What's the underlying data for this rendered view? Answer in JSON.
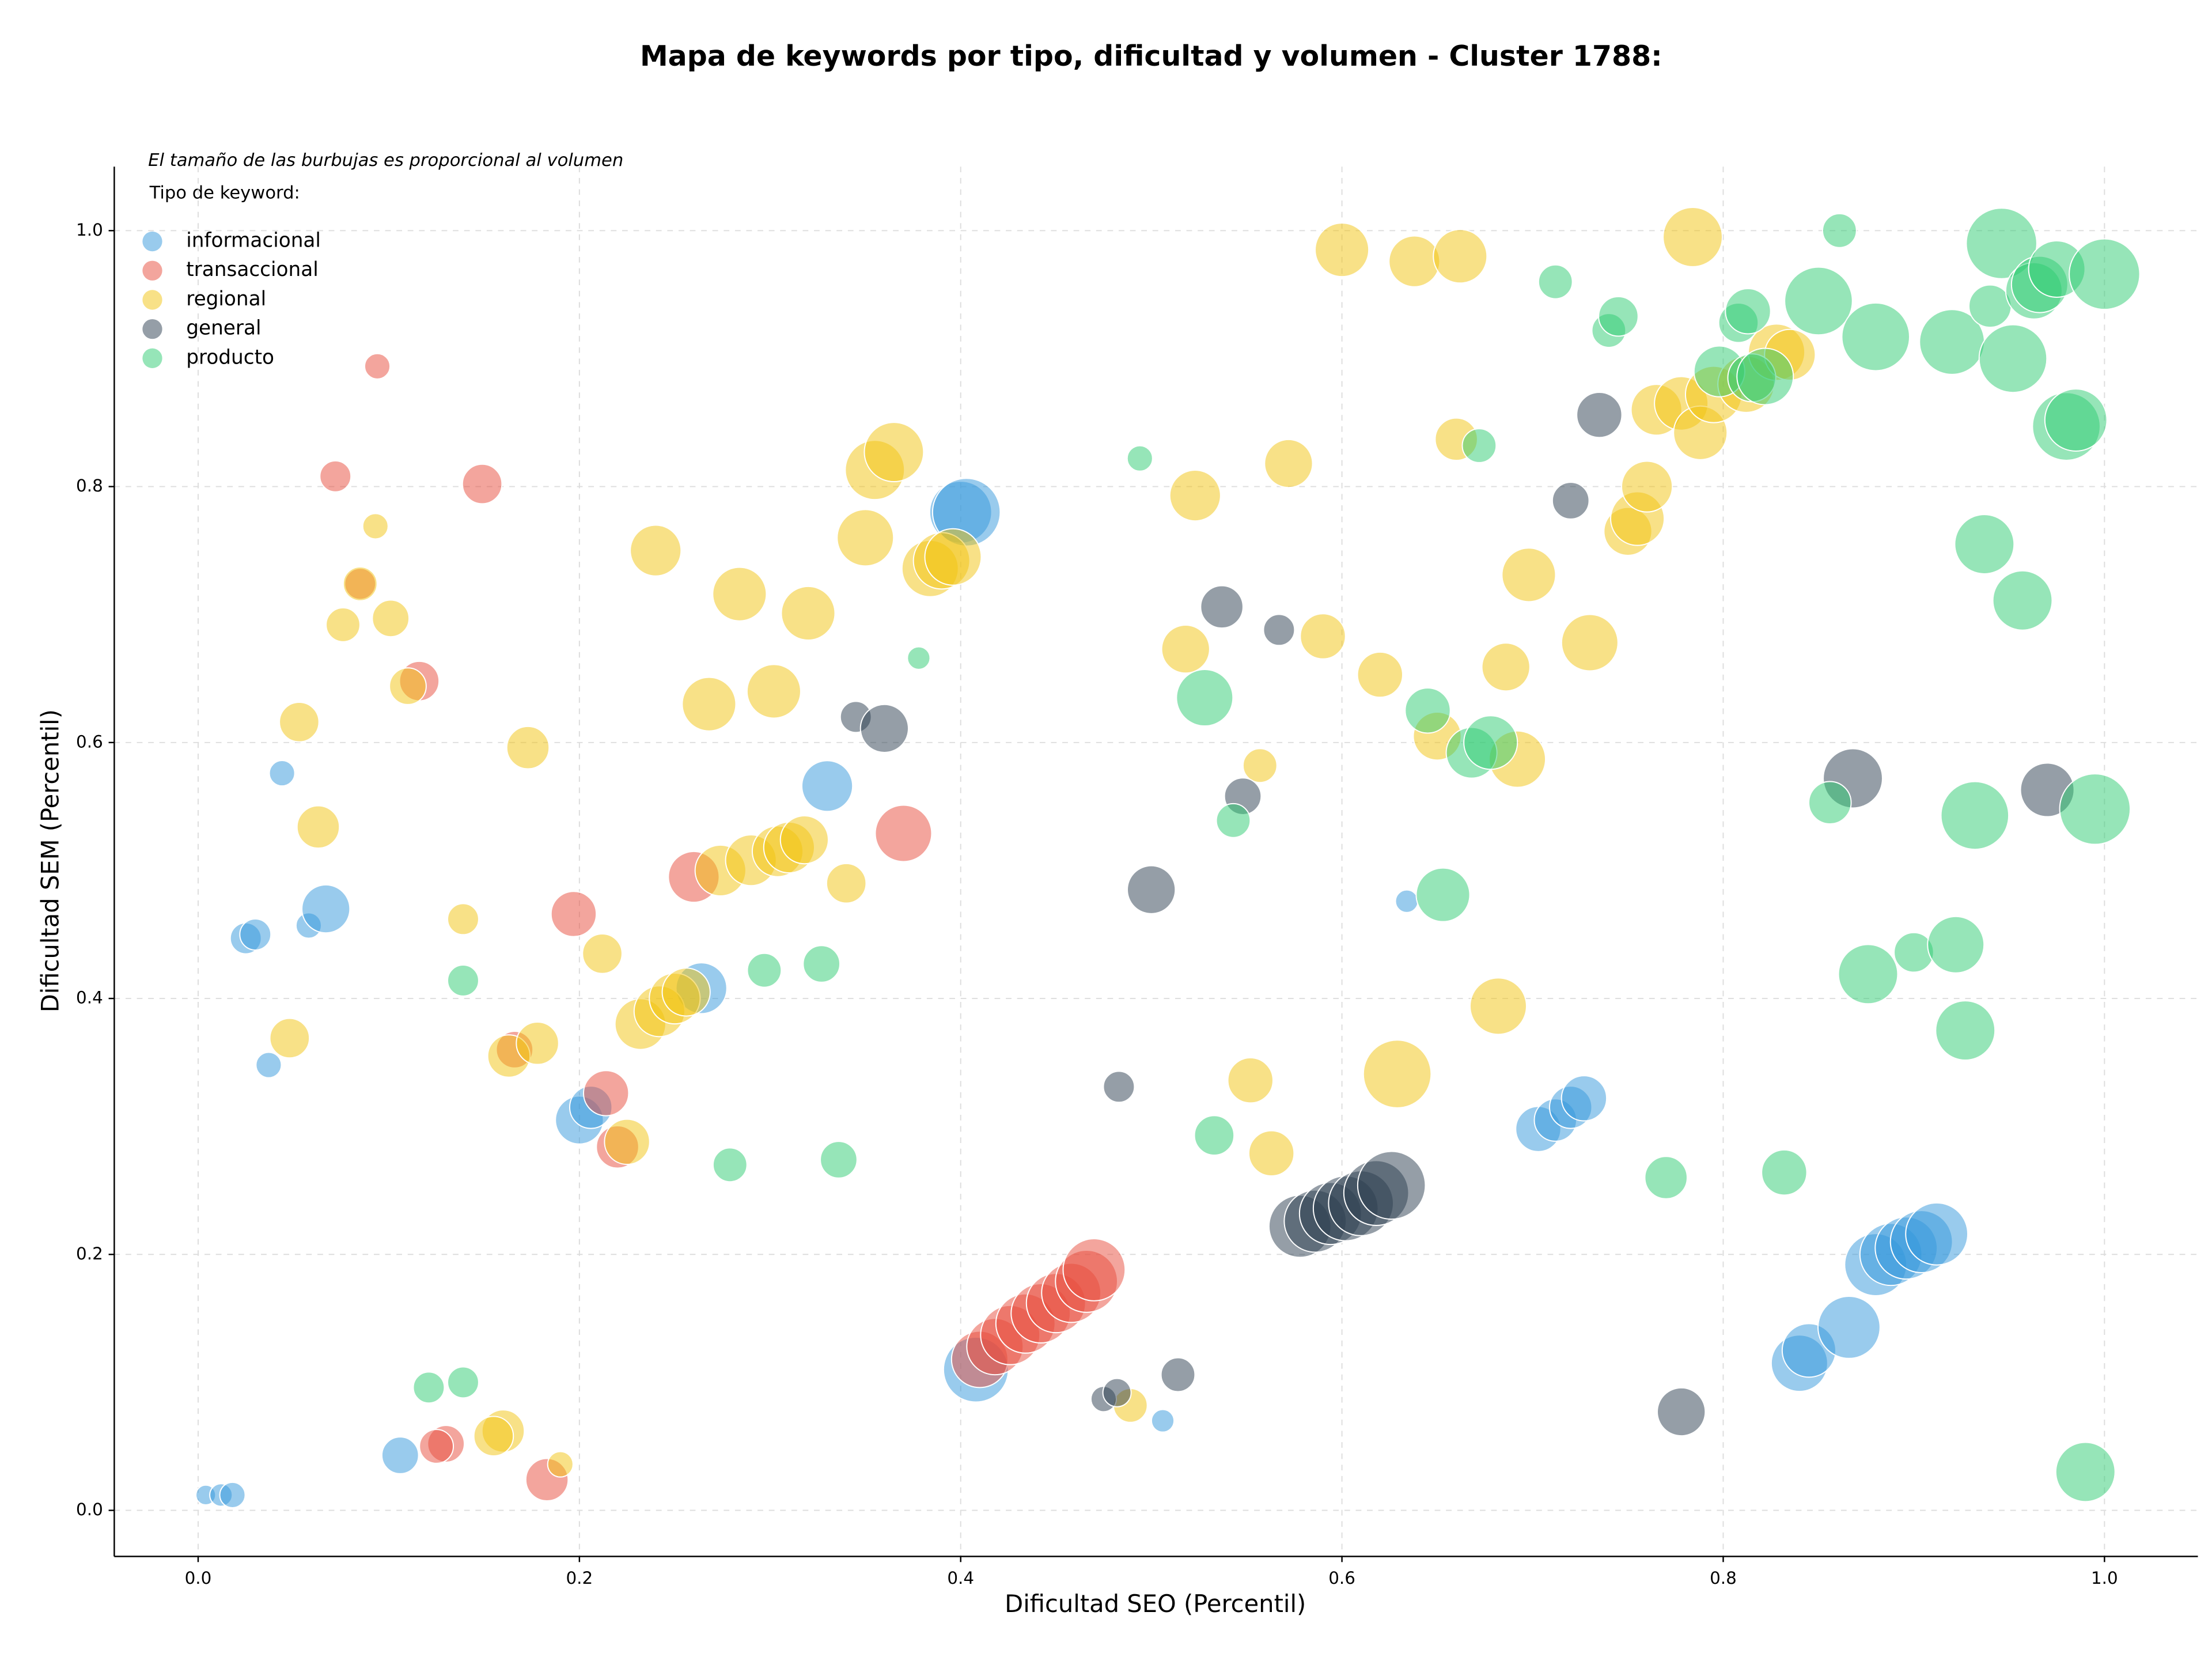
{
  "chart_data": {
    "type": "scatter",
    "title": "Mapa de keywords por tipo, dificultad y volumen - Cluster 1788:",
    "annotation": "El tamaño de las burbujas es proporcional al volumen",
    "legend_title": "Tipo de keyword:",
    "legend_position": "upper left",
    "x_label": "Dificultad SEO (Percentil)",
    "y_label": "Dificultad SEM (Percentil)",
    "xlim": [
      -0.044,
      1.049
    ],
    "ylim": [
      -0.036,
      1.05
    ],
    "xticks": [
      {
        "value": 0,
        "label": "0.0"
      },
      0.2,
      0.4,
      0.6,
      0.8,
      {
        "value": 1,
        "label": "1.0"
      }
    ],
    "yticks": [
      {
        "value": 0,
        "label": "0.0"
      },
      0.2,
      0.4,
      0.6,
      0.8,
      {
        "value": 1,
        "label": "1.0"
      }
    ],
    "grid": true,
    "series": [
      {
        "name": "informacional",
        "color": "#3498db",
        "x": [
          0.004,
          0.012,
          0.018,
          0.025,
          0.03,
          0.037,
          0.044,
          0.058,
          0.067,
          0.106,
          0.2,
          0.206,
          0.264,
          0.33,
          0.4,
          0.403,
          0.408,
          0.506,
          0.634,
          0.703,
          0.712,
          0.72,
          0.727,
          0.84,
          0.845,
          0.866,
          0.88,
          0.888,
          0.896,
          0.904,
          0.912
        ],
        "y": [
          0.012,
          0.012,
          0.012,
          0.447,
          0.45,
          0.348,
          0.576,
          0.457,
          0.47,
          0.043,
          0.305,
          0.315,
          0.408,
          0.566,
          0.78,
          0.78,
          0.11,
          0.07,
          0.476,
          0.298,
          0.305,
          0.315,
          0.322,
          0.115,
          0.125,
          0.143,
          0.192,
          0.2,
          0.205,
          0.21,
          0.216
        ],
        "sizes": [
          49,
          64,
          81,
          121,
          121,
          81,
          81,
          81,
          289,
          169,
          289,
          225,
          324,
          324,
          484,
          576,
          529,
          64,
          64,
          256,
          225,
          225,
          256,
          400,
          361,
          484,
          484,
          484,
          484,
          484,
          484
        ]
      },
      {
        "name": "transaccional",
        "color": "#e74c3c",
        "x": [
          0.094,
          0.072,
          0.149,
          0.085,
          0.116,
          0.197,
          0.26,
          0.37,
          0.166,
          0.214,
          0.22,
          0.13,
          0.125,
          0.183,
          0.41,
          0.418,
          0.426,
          0.434,
          0.442,
          0.45,
          0.458,
          0.466,
          0.47
        ],
        "y": [
          0.894,
          0.808,
          0.802,
          0.724,
          0.648,
          0.466,
          0.495,
          0.529,
          0.36,
          0.326,
          0.284,
          0.052,
          0.05,
          0.024,
          0.118,
          0.128,
          0.137,
          0.146,
          0.154,
          0.162,
          0.17,
          0.179,
          0.188
        ],
        "sizes": [
          81,
          121,
          196,
          121,
          196,
          256,
          324,
          400,
          169,
          256,
          225,
          169,
          144,
          225,
          400,
          400,
          441,
          441,
          441,
          441,
          441,
          484,
          484
        ]
      },
      {
        "name": "regional",
        "color": "#f1c40f",
        "x": [
          0.093,
          0.085,
          0.076,
          0.101,
          0.11,
          0.053,
          0.063,
          0.173,
          0.139,
          0.212,
          0.048,
          0.163,
          0.178,
          0.225,
          0.16,
          0.155,
          0.19,
          0.24,
          0.284,
          0.32,
          0.268,
          0.302,
          0.35,
          0.355,
          0.365,
          0.384,
          0.39,
          0.396,
          0.34,
          0.232,
          0.242,
          0.25,
          0.256,
          0.274,
          0.29,
          0.304,
          0.31,
          0.318,
          0.6,
          0.638,
          0.662,
          0.784,
          0.572,
          0.523,
          0.66,
          0.698,
          0.73,
          0.59,
          0.518,
          0.62,
          0.686,
          0.65,
          0.692,
          0.557,
          0.682,
          0.629,
          0.552,
          0.563,
          0.489,
          0.75,
          0.755,
          0.76,
          0.765,
          0.778,
          0.788,
          0.795,
          0.812,
          0.828,
          0.835
        ],
        "y": [
          0.769,
          0.724,
          0.692,
          0.697,
          0.644,
          0.616,
          0.534,
          0.596,
          0.462,
          0.435,
          0.369,
          0.355,
          0.365,
          0.288,
          0.062,
          0.058,
          0.036,
          0.75,
          0.716,
          0.701,
          0.63,
          0.64,
          0.76,
          0.813,
          0.827,
          0.736,
          0.742,
          0.745,
          0.49,
          0.38,
          0.39,
          0.4,
          0.405,
          0.5,
          0.508,
          0.515,
          0.518,
          0.524,
          0.985,
          0.976,
          0.98,
          0.995,
          0.818,
          0.793,
          0.837,
          0.731,
          0.678,
          0.683,
          0.673,
          0.653,
          0.659,
          0.605,
          0.587,
          0.582,
          0.394,
          0.341,
          0.336,
          0.279,
          0.082,
          0.765,
          0.775,
          0.8,
          0.86,
          0.865,
          0.842,
          0.872,
          0.88,
          0.905,
          0.903
        ],
        "sizes": [
          81,
          144,
          144,
          169,
          169,
          196,
          225,
          225,
          121,
          196,
          196,
          225,
          225,
          256,
          225,
          196,
          81,
          324,
          361,
          361,
          361,
          361,
          400,
          441,
          441,
          400,
          400,
          400,
          196,
          324,
          324,
          324,
          289,
          324,
          324,
          324,
          324,
          289,
          361,
          324,
          361,
          441,
          289,
          324,
          225,
          361,
          400,
          256,
          289,
          256,
          289,
          289,
          400,
          144,
          400,
          576,
          256,
          256,
          144,
          289,
          361,
          324,
          324,
          361,
          361,
          400,
          400,
          400,
          324
        ]
      },
      {
        "name": "general",
        "color": "#2c3e50",
        "x": [
          0.345,
          0.36,
          0.537,
          0.567,
          0.548,
          0.5,
          0.483,
          0.475,
          0.482,
          0.514,
          0.72,
          0.735,
          0.868,
          0.97,
          0.778,
          0.578,
          0.586,
          0.594,
          0.602,
          0.61,
          0.618,
          0.626
        ],
        "y": [
          0.62,
          0.611,
          0.706,
          0.688,
          0.558,
          0.485,
          0.331,
          0.087,
          0.092,
          0.106,
          0.789,
          0.856,
          0.572,
          0.563,
          0.077,
          0.222,
          0.226,
          0.232,
          0.236,
          0.24,
          0.248,
          0.254
        ],
        "sizes": [
          121,
          289,
          225,
          121,
          169,
          289,
          121,
          81,
          100,
          144,
          169,
          256,
          441,
          361,
          289,
          484,
          484,
          484,
          529,
          529,
          529,
          576
        ]
      },
      {
        "name": "producto",
        "color": "#2ecc71",
        "x": [
          0.139,
          0.121,
          0.139,
          0.297,
          0.327,
          0.279,
          0.336,
          0.378,
          0.494,
          0.528,
          0.543,
          0.533,
          0.645,
          0.668,
          0.678,
          0.653,
          0.672,
          0.712,
          0.74,
          0.745,
          0.77,
          0.832,
          0.861,
          0.808,
          0.813,
          0.798,
          0.815,
          0.822,
          0.85,
          0.88,
          0.92,
          0.94,
          0.946,
          0.952,
          0.963,
          0.966,
          0.975,
          0.98,
          0.985,
          1.0,
          0.937,
          0.957,
          0.856,
          0.932,
          0.995,
          0.876,
          0.9,
          0.922,
          0.927,
          0.99
        ],
        "y": [
          0.414,
          0.096,
          0.1,
          0.422,
          0.427,
          0.27,
          0.274,
          0.666,
          0.822,
          0.635,
          0.539,
          0.293,
          0.625,
          0.592,
          0.6,
          0.481,
          0.832,
          0.96,
          0.922,
          0.933,
          0.26,
          0.264,
          1.0,
          0.928,
          0.937,
          0.89,
          0.885,
          0.886,
          0.945,
          0.917,
          0.913,
          0.941,
          0.99,
          0.9,
          0.953,
          0.958,
          0.97,
          0.847,
          0.852,
          0.966,
          0.755,
          0.711,
          0.553,
          0.543,
          0.548,
          0.419,
          0.436,
          0.442,
          0.375,
          0.03
        ],
        "sizes": [
          121,
          121,
          121,
          144,
          169,
          144,
          169,
          64,
          81,
          400,
          144,
          196,
          256,
          324,
          361,
          361,
          144,
          144,
          144,
          196,
          225,
          256,
          144,
          196,
          256,
          324,
          289,
          400,
          576,
          576,
          529,
          225,
          625,
          576,
          400,
          400,
          400,
          576,
          484,
          625,
          441,
          441,
          225,
          576,
          625,
          441,
          196,
          400,
          441,
          441
        ]
      }
    ]
  }
}
